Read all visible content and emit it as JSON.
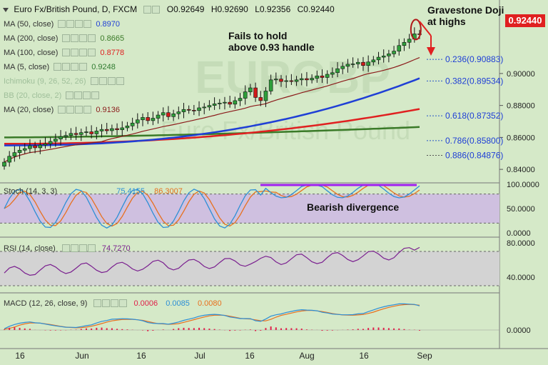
{
  "header": {
    "symbol": "Euro Fx/British Pound, D, FXCM",
    "open": "O0.92649",
    "high": "H0.92690",
    "low": "L0.92356",
    "close": "C0.92440"
  },
  "price_badge": "0.92440",
  "indicator_labels": [
    {
      "label": "MA (50, close)",
      "value": "0.8970",
      "color": "#1f3fd6"
    },
    {
      "label": "MA (200, close)",
      "value": "0.8665",
      "color": "#3a7a28"
    },
    {
      "label": "MA (100, close)",
      "value": "0.8778",
      "color": "#e02020"
    },
    {
      "label": "MA (5, close)",
      "value": "0.9248",
      "color": "#2f7a2f"
    },
    {
      "label": "Ichimoku (9, 26, 52, 26)",
      "value": "",
      "color": "#888888"
    },
    {
      "label": "BB (20, close, 2)",
      "value": "",
      "color": "#888888"
    },
    {
      "label": "MA (20, close)",
      "value": "0.9136",
      "color": "#8b1a1a"
    }
  ],
  "annotations": {
    "fails": [
      "Fails to hold",
      "above 0.93 handle"
    ],
    "doji": [
      "Gravestone Doji",
      "at highs"
    ],
    "divergence": "Bearish divergence",
    "watermark": "EURGBP",
    "watermark_sub": "Euro Fx/British Pound"
  },
  "stoch": {
    "label": "Stoch (14, 3, 3)",
    "k": "75.4155",
    "d": "86.3007",
    "k_color": "#2d8fd6",
    "d_color": "#e8701e"
  },
  "rsi": {
    "label": "RSI (14, close)",
    "value": "74.7270",
    "color": "#7a1f8f"
  },
  "macd": {
    "label": "MACD (12, 26, close, 9)",
    "hist": "0.0006",
    "macd": "0.0085",
    "signal": "0.0080",
    "hist_color": "#e0204a",
    "macd_color": "#2d8fd6",
    "signal_color": "#e8701e"
  },
  "colors": {
    "accent": "#e02020",
    "divergence_line": "#a020f0",
    "zone": "#cfc0e0"
  },
  "chart_data": [
    {
      "type": "candlestick",
      "title": "Euro Fx/British Pound, D, FXCM",
      "ylim": [
        0.832,
        0.946
      ],
      "y_ticks": [
        "0.92440",
        "0.90000",
        "0.88000",
        "0.86000",
        "0.84000"
      ],
      "x_ticks": [
        "16",
        "Jun",
        "16",
        "Jul",
        "16",
        "Aug",
        "16",
        "Sep"
      ],
      "close": [
        0.8445,
        0.8482,
        0.8505,
        0.852,
        0.853,
        0.8548,
        0.8535,
        0.8552,
        0.856,
        0.8575,
        0.859,
        0.8605,
        0.8612,
        0.8625,
        0.8618,
        0.863,
        0.8635,
        0.8622,
        0.864,
        0.865,
        0.8642,
        0.8655,
        0.8648,
        0.866,
        0.8672,
        0.869,
        0.871,
        0.8725,
        0.8705,
        0.872,
        0.874,
        0.8755,
        0.873,
        0.8748,
        0.876,
        0.8775,
        0.877,
        0.8768,
        0.8785,
        0.879,
        0.88,
        0.881,
        0.8815,
        0.882,
        0.8808,
        0.883,
        0.8845,
        0.8885,
        0.891,
        0.885,
        0.883,
        0.889,
        0.896,
        0.8965,
        0.895,
        0.8955,
        0.895,
        0.896,
        0.8968,
        0.896,
        0.897,
        0.8985,
        0.8975,
        0.8995,
        0.9005,
        0.903,
        0.9045,
        0.9058,
        0.906,
        0.907,
        0.905,
        0.9072,
        0.9085,
        0.9102,
        0.911,
        0.9123,
        0.914,
        0.9175,
        0.9195,
        0.9215,
        0.9248,
        0.9244
      ],
      "fib_levels": [
        {
          "label": "0.236(0.90883)",
          "value": 0.90883
        },
        {
          "label": "0.382(0.89534)",
          "value": 0.89534
        },
        {
          "label": "0.618(0.87352)",
          "value": 0.87352
        },
        {
          "label": "0.786(0.85800)",
          "value": 0.858
        },
        {
          "label": "0.886(0.84876)",
          "value": 0.84876
        }
      ],
      "series": [
        {
          "name": "MA (50, close)",
          "color": "#1f3fd6"
        },
        {
          "name": "MA (200, close)",
          "color": "#3a7a28"
        },
        {
          "name": "MA (100, close)",
          "color": "#e02020"
        },
        {
          "name": "MA (20, close)",
          "color": "#8b1a1a"
        }
      ]
    },
    {
      "type": "line",
      "title": "Stoch (14, 3, 3)",
      "ylim": [
        0,
        100
      ],
      "y_ticks": [
        "100.0000",
        "50.0000",
        "0.0000"
      ]
    },
    {
      "type": "line",
      "title": "RSI (14, close)",
      "ylim": [
        25,
        85
      ],
      "y_ticks": [
        "80.0000",
        "40.0000"
      ]
    },
    {
      "type": "bar",
      "title": "MACD (12, 26, close, 9)",
      "y_ticks": [
        "0.0000"
      ]
    }
  ]
}
